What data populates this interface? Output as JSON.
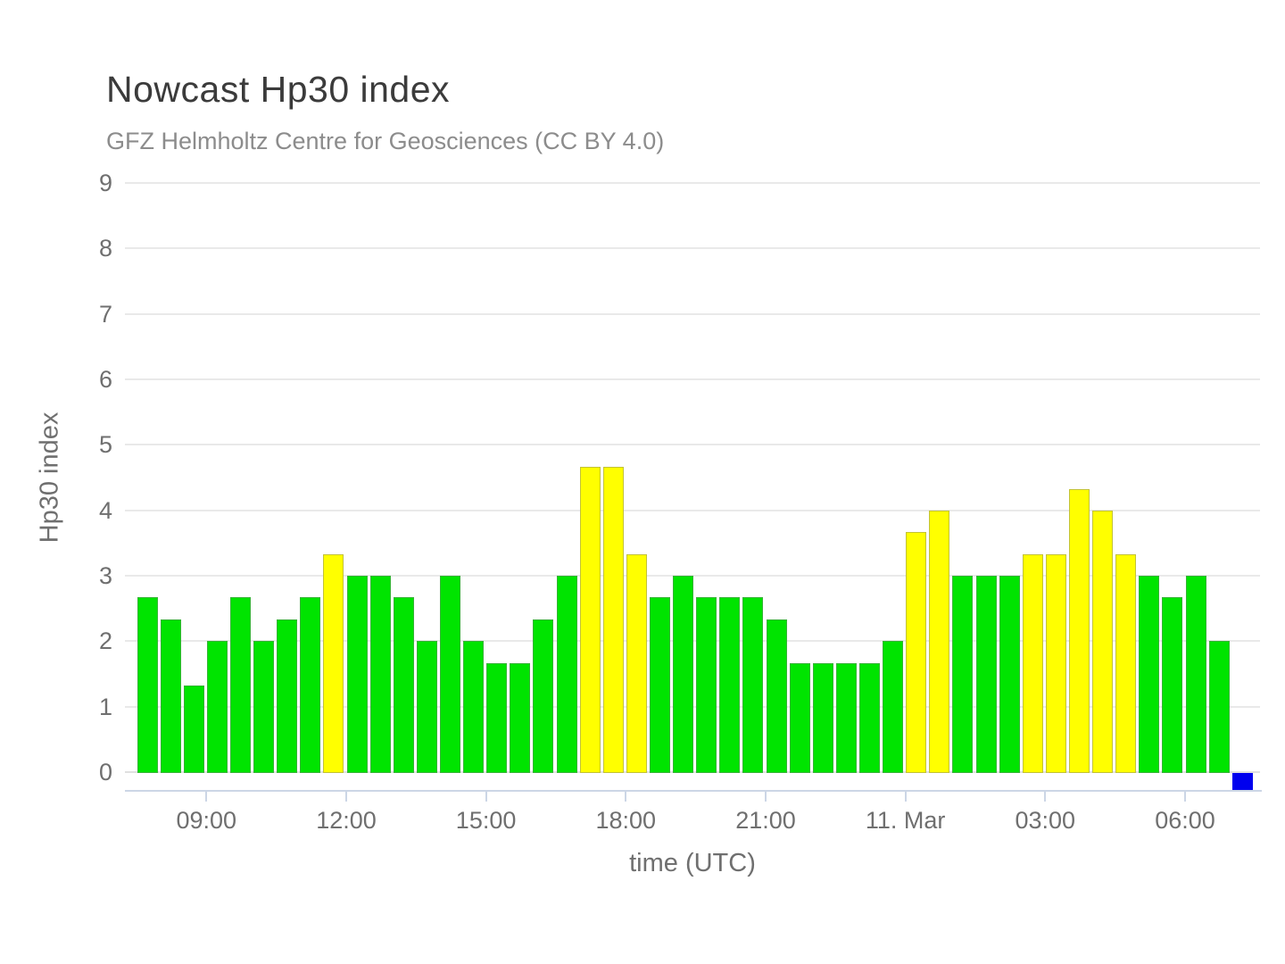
{
  "header": {
    "title": "Nowcast Hp30 index",
    "subtitle": "GFZ Helmholtz Centre for Geosciences (CC BY 4.0)"
  },
  "chart_data": {
    "type": "bar",
    "title": "Nowcast Hp30 index",
    "subtitle": "GFZ Helmholtz Centre for Geosciences (CC BY 4.0)",
    "xlabel": "time (UTC)",
    "ylabel": "Hp30 index",
    "ylim": [
      0,
      9
    ],
    "ytick_labels": [
      "0",
      "1",
      "2",
      "3",
      "4",
      "5",
      "6",
      "7",
      "8",
      "9"
    ],
    "xtick_labels": [
      "09:00",
      "12:00",
      "15:00",
      "18:00",
      "21:00",
      "11. Mar",
      "03:00",
      "06:00"
    ],
    "grid": "horizontal-only",
    "legend": "none",
    "interval_minutes": 30,
    "date_boundary_tick": "11. Mar",
    "colors": {
      "green": "#00e400",
      "yellow": "#ffff00",
      "blue": "#0000ee"
    },
    "color_rule": "green for Hp30 <= 3.0, yellow for Hp30 >= 3.33, blue square below axis marks latest interval with no value yet",
    "series": [
      {
        "time": "07:30",
        "value": 2.67,
        "color": "green"
      },
      {
        "time": "08:00",
        "value": 2.33,
        "color": "green"
      },
      {
        "time": "08:30",
        "value": 1.33,
        "color": "green"
      },
      {
        "time": "09:00",
        "value": 2.0,
        "color": "green"
      },
      {
        "time": "09:30",
        "value": 2.67,
        "color": "green"
      },
      {
        "time": "10:00",
        "value": 2.0,
        "color": "green"
      },
      {
        "time": "10:30",
        "value": 2.33,
        "color": "green"
      },
      {
        "time": "11:00",
        "value": 2.67,
        "color": "green"
      },
      {
        "time": "11:30",
        "value": 3.33,
        "color": "yellow"
      },
      {
        "time": "12:00",
        "value": 3.0,
        "color": "green"
      },
      {
        "time": "12:30",
        "value": 3.0,
        "color": "green"
      },
      {
        "time": "13:00",
        "value": 2.67,
        "color": "green"
      },
      {
        "time": "13:30",
        "value": 2.0,
        "color": "green"
      },
      {
        "time": "14:00",
        "value": 3.0,
        "color": "green"
      },
      {
        "time": "14:30",
        "value": 2.0,
        "color": "green"
      },
      {
        "time": "15:00",
        "value": 1.67,
        "color": "green"
      },
      {
        "time": "15:30",
        "value": 1.67,
        "color": "green"
      },
      {
        "time": "16:00",
        "value": 2.33,
        "color": "green"
      },
      {
        "time": "16:30",
        "value": 3.0,
        "color": "green"
      },
      {
        "time": "17:00",
        "value": 4.67,
        "color": "yellow"
      },
      {
        "time": "17:30",
        "value": 4.67,
        "color": "yellow"
      },
      {
        "time": "18:00",
        "value": 3.33,
        "color": "yellow"
      },
      {
        "time": "18:30",
        "value": 2.67,
        "color": "green"
      },
      {
        "time": "19:00",
        "value": 3.0,
        "color": "green"
      },
      {
        "time": "19:30",
        "value": 2.67,
        "color": "green"
      },
      {
        "time": "20:00",
        "value": 2.67,
        "color": "green"
      },
      {
        "time": "20:30",
        "value": 2.67,
        "color": "green"
      },
      {
        "time": "21:00",
        "value": 2.33,
        "color": "green"
      },
      {
        "time": "21:30",
        "value": 1.67,
        "color": "green"
      },
      {
        "time": "22:00",
        "value": 1.67,
        "color": "green"
      },
      {
        "time": "22:30",
        "value": 1.67,
        "color": "green"
      },
      {
        "time": "23:00",
        "value": 1.67,
        "color": "green"
      },
      {
        "time": "23:30",
        "value": 2.0,
        "color": "green"
      },
      {
        "time": "00:00",
        "value": 3.67,
        "color": "yellow"
      },
      {
        "time": "00:30",
        "value": 4.0,
        "color": "yellow"
      },
      {
        "time": "01:00",
        "value": 3.0,
        "color": "green"
      },
      {
        "time": "01:30",
        "value": 3.0,
        "color": "green"
      },
      {
        "time": "02:00",
        "value": 3.0,
        "color": "green"
      },
      {
        "time": "02:30",
        "value": 3.33,
        "color": "yellow"
      },
      {
        "time": "03:00",
        "value": 3.33,
        "color": "yellow"
      },
      {
        "time": "03:30",
        "value": 4.33,
        "color": "yellow"
      },
      {
        "time": "04:00",
        "value": 4.0,
        "color": "yellow"
      },
      {
        "time": "04:30",
        "value": 3.33,
        "color": "yellow"
      },
      {
        "time": "05:00",
        "value": 3.0,
        "color": "green"
      },
      {
        "time": "05:30",
        "value": 2.67,
        "color": "green"
      },
      {
        "time": "06:00",
        "value": 3.0,
        "color": "green"
      },
      {
        "time": "06:30",
        "value": 2.0,
        "color": "green"
      },
      {
        "time": "07:00",
        "value": null,
        "color": "blue"
      }
    ]
  }
}
